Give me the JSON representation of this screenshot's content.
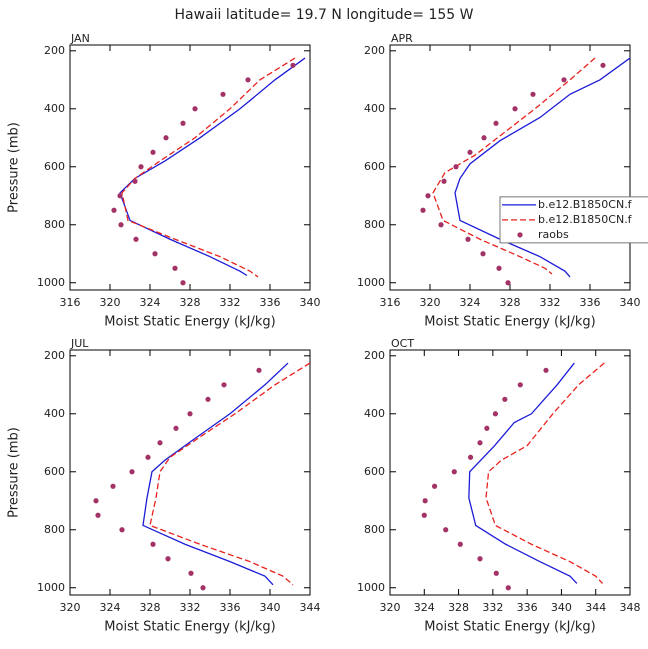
{
  "title": "Hawaii  latitude= 19.7 N longitude= 155 W",
  "chart_data": [
    {
      "type": "line",
      "title": "JAN",
      "xlabel": "Moist Static Energy (kJ/kg)",
      "ylabel": "Pressure (mb)",
      "xlim": [
        316,
        340
      ],
      "xticks": [
        316,
        320,
        324,
        328,
        332,
        336,
        340
      ],
      "ylim": [
        1025,
        180
      ],
      "yticks": [
        200,
        400,
        600,
        800,
        1000
      ],
      "series": [
        {
          "name": "b.e12.B1850CN.f",
          "color": "#1c1cd8",
          "style": "solid",
          "x": [
            339.5,
            336.5,
            333,
            329,
            325.5,
            322.5,
            321,
            322,
            326,
            330,
            333,
            333.7
          ],
          "y": [
            225,
            300,
            400,
            500,
            580,
            640,
            690,
            785,
            850,
            910,
            960,
            975
          ]
        },
        {
          "name": "b.e12.B1850CN.f",
          "color": "#e8221e",
          "style": "dashed",
          "x": [
            338.5,
            335,
            332,
            328.5,
            325,
            322.5,
            321.2,
            321.8,
            326.5,
            331,
            334,
            334.8
          ],
          "y": [
            225,
            300,
            400,
            500,
            580,
            640,
            690,
            785,
            850,
            910,
            960,
            980
          ]
        },
        {
          "name": "raobs",
          "color": "#a33366",
          "style": "markers",
          "x": [
            338.3,
            333.8,
            331.3,
            328.5,
            327.3,
            325.6,
            324.3,
            323.1,
            322.5,
            321,
            320.4,
            321.1,
            322.6,
            324.5,
            326.5,
            327.3
          ],
          "y": [
            250,
            300,
            350,
            400,
            450,
            500,
            550,
            600,
            650,
            700,
            750,
            800,
            850,
            900,
            950,
            1000
          ]
        }
      ]
    },
    {
      "type": "line",
      "title": "APR",
      "xlabel": "Moist Static Energy (kJ/kg)",
      "legend": "right",
      "xlim": [
        316,
        340
      ],
      "xticks": [
        316,
        320,
        324,
        328,
        332,
        336,
        340
      ],
      "ylim": [
        1025,
        180
      ],
      "yticks": [
        200,
        400,
        600,
        800,
        1000
      ],
      "series": [
        {
          "name": "b.e12.B1850CN.f",
          "color": "#1c1cd8",
          "style": "solid",
          "x": [
            340,
            337,
            334,
            331,
            327,
            324,
            323,
            322.5,
            323,
            327,
            331,
            333.5,
            334
          ],
          "y": [
            225,
            300,
            350,
            430,
            510,
            590,
            640,
            690,
            785,
            850,
            910,
            960,
            980
          ]
        },
        {
          "name": "b.e12.B1850CN.f",
          "color": "#e8221e",
          "style": "dashed",
          "x": [
            336.5,
            334,
            330.5,
            327.5,
            324.5,
            321.5,
            320.3,
            321.3,
            325,
            329,
            331.5,
            332.2
          ],
          "y": [
            225,
            300,
            400,
            480,
            560,
            620,
            690,
            785,
            850,
            910,
            950,
            970
          ]
        },
        {
          "name": "raobs",
          "color": "#a33366",
          "style": "markers",
          "x": [
            337.3,
            333.4,
            330.3,
            328.5,
            326.6,
            325.4,
            324,
            322.6,
            321.4,
            319.8,
            319.3,
            321.1,
            323.8,
            325.3,
            326.9,
            327.8
          ],
          "y": [
            250,
            300,
            350,
            400,
            450,
            500,
            550,
            600,
            650,
            700,
            750,
            800,
            850,
            900,
            950,
            1000
          ]
        }
      ]
    },
    {
      "type": "line",
      "title": "JUL",
      "xlabel": "Moist Static Energy (kJ/kg)",
      "ylabel": "Pressure (mb)",
      "xlim": [
        320,
        344
      ],
      "xticks": [
        320,
        324,
        328,
        332,
        336,
        340,
        344
      ],
      "ylim": [
        1025,
        180
      ],
      "yticks": [
        200,
        400,
        600,
        800,
        1000
      ],
      "series": [
        {
          "name": "b.e12.B1850CN.f",
          "color": "#1c1cd8",
          "style": "solid",
          "x": [
            341.8,
            339.5,
            336,
            332.3,
            329.5,
            328.2,
            327.7,
            327.3,
            331.5,
            336,
            339.5,
            340.3
          ],
          "y": [
            225,
            300,
            400,
            490,
            560,
            600,
            690,
            785,
            850,
            910,
            960,
            990
          ]
        },
        {
          "name": "b.e12.B1850CN.f",
          "color": "#e8221e",
          "style": "dashed",
          "x": [
            344,
            340.5,
            336.5,
            333,
            330,
            329,
            328.6,
            328,
            333,
            338,
            341.3,
            342.3
          ],
          "y": [
            225,
            300,
            400,
            480,
            550,
            600,
            690,
            785,
            850,
            910,
            960,
            990
          ]
        },
        {
          "name": "raobs",
          "color": "#a33366",
          "style": "markers",
          "x": [
            338.9,
            335.4,
            333.8,
            332,
            330.6,
            329,
            327.8,
            326.2,
            324.3,
            322.6,
            322.8,
            325.2,
            328.3,
            329.8,
            332.1,
            333.3
          ],
          "y": [
            250,
            300,
            350,
            400,
            450,
            500,
            550,
            600,
            650,
            700,
            750,
            800,
            850,
            900,
            950,
            1000
          ]
        }
      ]
    },
    {
      "type": "line",
      "title": "OCT",
      "xlabel": "Moist Static Energy (kJ/kg)",
      "xlim": [
        320,
        348
      ],
      "xticks": [
        320,
        324,
        328,
        332,
        336,
        340,
        344,
        348
      ],
      "ylim": [
        1025,
        180
      ],
      "yticks": [
        200,
        400,
        600,
        800,
        1000
      ],
      "series": [
        {
          "name": "b.e12.B1850CN.f",
          "color": "#1c1cd8",
          "style": "solid",
          "x": [
            341.5,
            339.5,
            336.5,
            334.5,
            332.2,
            329.3,
            329.2,
            330,
            333.5,
            337.5,
            341,
            341.8
          ],
          "y": [
            225,
            300,
            400,
            430,
            510,
            600,
            690,
            785,
            850,
            910,
            960,
            985
          ]
        },
        {
          "name": "b.e12.B1850CN.f",
          "color": "#e8221e",
          "style": "dashed",
          "x": [
            345,
            342,
            339,
            336,
            333,
            331.5,
            331.2,
            332.3,
            336.5,
            341,
            344,
            344.8
          ],
          "y": [
            225,
            300,
            400,
            510,
            560,
            600,
            690,
            785,
            850,
            910,
            960,
            985
          ]
        },
        {
          "name": "raobs",
          "color": "#a33366",
          "style": "markers",
          "x": [
            338.2,
            335.2,
            333.4,
            332.3,
            331.3,
            330.5,
            329.4,
            327.5,
            325.2,
            324.1,
            324,
            326.5,
            328.2,
            330.5,
            332.4,
            333.8
          ],
          "y": [
            250,
            300,
            350,
            400,
            450,
            500,
            550,
            600,
            650,
            700,
            750,
            800,
            850,
            900,
            950,
            1000
          ]
        }
      ]
    }
  ]
}
